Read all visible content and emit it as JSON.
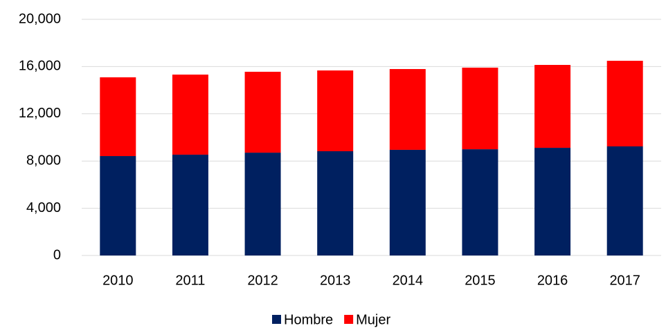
{
  "chart_data": {
    "type": "stacked_bar",
    "categories": [
      "2010",
      "2011",
      "2012",
      "2013",
      "2014",
      "2015",
      "2016",
      "2017"
    ],
    "series": [
      {
        "name": "Hombre",
        "color": "#002060",
        "values": [
          8420,
          8540,
          8710,
          8830,
          8950,
          9000,
          9120,
          9240
        ]
      },
      {
        "name": "Mujer",
        "color": "#ff0000",
        "values": [
          6670,
          6780,
          6850,
          6840,
          6840,
          6910,
          7020,
          7250
        ]
      }
    ],
    "ylim": [
      0,
      20000
    ],
    "yticks": [
      0,
      {
        "value": 4000,
        "label": "4,000"
      },
      {
        "value": 8000,
        "label": "8,000"
      },
      {
        "value": 12000,
        "label": "12,000"
      },
      {
        "value": 16000,
        "label": "16,000"
      },
      {
        "value": 20000,
        "label": "20,000"
      }
    ],
    "grid": true,
    "legend": "bottom"
  }
}
